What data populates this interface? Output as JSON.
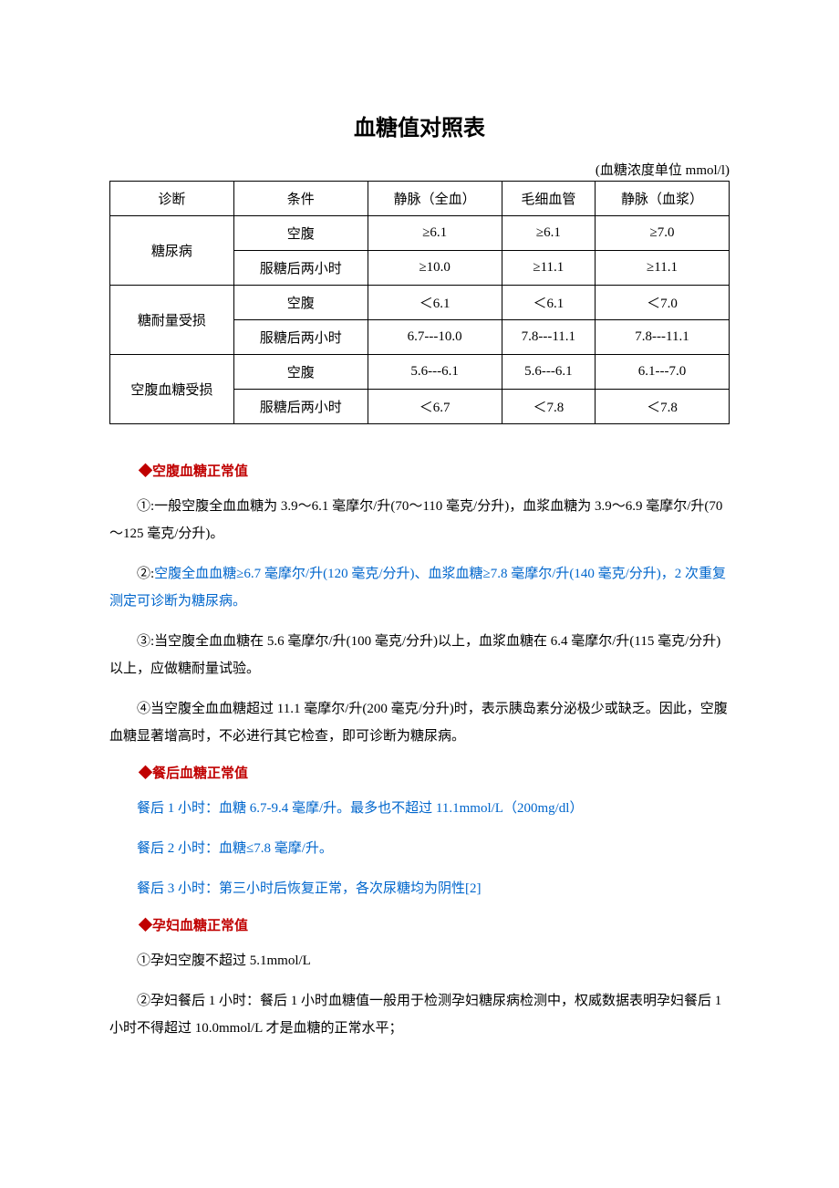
{
  "title": "血糖值对照表",
  "unit": "(血糖浓度单位 mmol/l)",
  "table": {
    "headers": [
      "诊断",
      "条件",
      "静脉（全血）",
      "毛细血管",
      "静脉（血浆）"
    ],
    "groups": [
      {
        "diag": "糖尿病",
        "rows": [
          {
            "cond": "空腹",
            "v1": "≥6.1",
            "v2": "≥6.1",
            "v3": "≥7.0"
          },
          {
            "cond": "服糖后两小时",
            "v1": "≥10.0",
            "v2": "≥11.1",
            "v3": "≥11.1"
          }
        ]
      },
      {
        "diag": "糖耐量受损",
        "rows": [
          {
            "cond": "空腹",
            "v1": "＜6.1",
            "v2": "＜6.1",
            "v3": "＜7.0"
          },
          {
            "cond": "服糖后两小时",
            "v1": "6.7---10.0",
            "v2": "7.8---11.1",
            "v3": "7.8---11.1"
          }
        ]
      },
      {
        "diag": "空腹血糖受损",
        "rows": [
          {
            "cond": "空腹",
            "v1": "5.6---6.1",
            "v2": "5.6---6.1",
            "v3": "6.1---7.0"
          },
          {
            "cond": "服糖后两小时",
            "v1": "＜6.7",
            "v2": "＜7.8",
            "v3": "＜7.8"
          }
        ]
      }
    ]
  },
  "sections": {
    "s1": {
      "head": "◆空腹血糖正常值",
      "p1": "①:一般空腹全血血糖为 3.9～6.1 毫摩尔/升(70～110 毫克/分升)，血浆血糖为 3.9～6.9 毫摩尔/升(70～125 毫克/分升)。",
      "p2a": "②:",
      "p2b": "空腹全血血糖≥6.7 毫摩尔/升(120 毫克/分升)、血浆血糖≥7.8 毫摩尔/升(140 毫克/分升)，2 次重复测定可诊断为糖尿病。",
      "p3": "③:当空腹全血血糖在 5.6 毫摩尔/升(100 毫克/分升)以上，血浆血糖在 6.4 毫摩尔/升(115 毫克/分升)以上，应做糖耐量试验。",
      "p4": "④当空腹全血血糖超过 11.1 毫摩尔/升(200 毫克/分升)时，表示胰岛素分泌极少或缺乏。因此，空腹血糖显著增高时，不必进行其它检查，即可诊断为糖尿病。"
    },
    "s2": {
      "head": "◆餐后血糖正常值",
      "p1": "餐后 1 小时：血糖 6.7-9.4 毫摩/升。最多也不超过 11.1mmol/L（200mg/dl）",
      "p2": "餐后 2 小时：血糖≤7.8 毫摩/升。",
      "p3": "餐后 3 小时：第三小时后恢复正常，各次尿糖均为阴性[2]"
    },
    "s3": {
      "head": "◆孕妇血糖正常值",
      "p1": "①孕妇空腹不超过 5.1mmol/L",
      "p2": "②孕妇餐后 1 小时：餐后 1 小时血糖值一般用于检测孕妇糖尿病检测中，权威数据表明孕妇餐后 1 小时不得超过 10.0mmol/L 才是血糖的正常水平；"
    }
  }
}
